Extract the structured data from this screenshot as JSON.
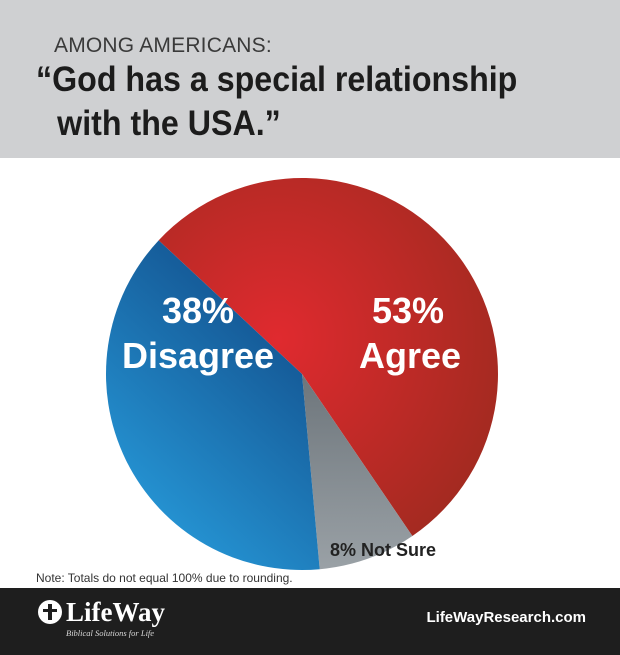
{
  "header": {
    "eyebrow": "AMONG AMERICANS:",
    "title_line1": "“God has a special relationship",
    "title_line2": "with the USA.”"
  },
  "chart_data": {
    "type": "pie",
    "title": "“God has a special relationship with the USA.”",
    "slices": [
      {
        "label": "Agree",
        "value": 53,
        "percent_label": "53%",
        "color": "#c8232c"
      },
      {
        "label": "Not Sure",
        "value": 8,
        "percent_label": "8% Not Sure",
        "color": "#7d858b"
      },
      {
        "label": "Disagree",
        "value": 38,
        "percent_label": "38%",
        "color": "#1976b9"
      }
    ]
  },
  "note": "Note: Totals do not equal 100% due to rounding.",
  "footer": {
    "logo_name": "LifeWay",
    "logo_tagline": "Biblical Solutions for Life",
    "website": "LifeWayResearch.com"
  },
  "colors": {
    "header_bg": "#cfd0d2",
    "footer_bg": "#1e1e1e",
    "agree": "#c8232c",
    "disagree": "#1976b9",
    "not_sure": "#7d858b"
  }
}
